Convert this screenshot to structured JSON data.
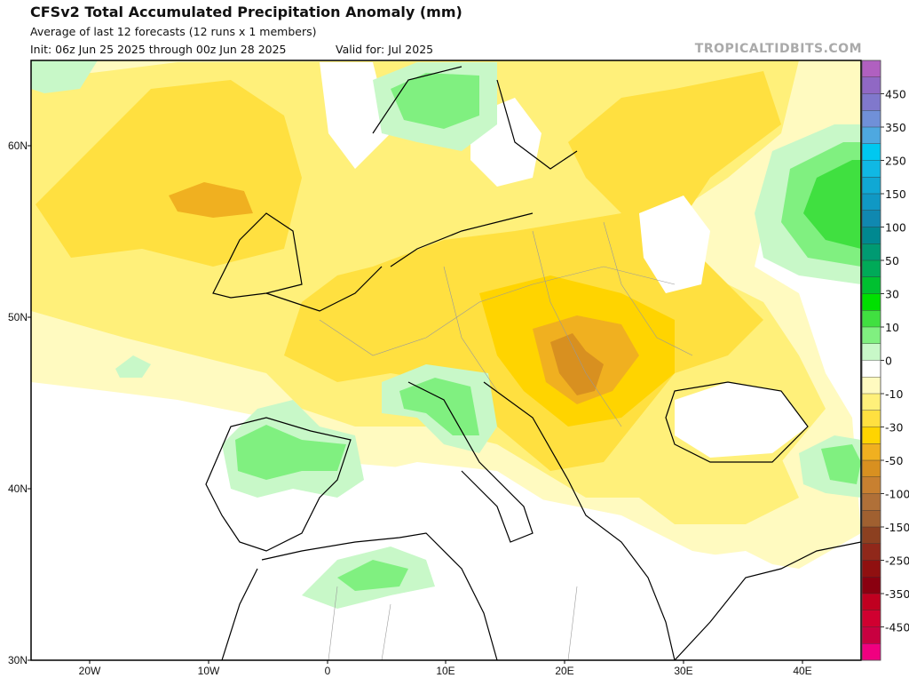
{
  "header": {
    "title": "CFSv2 Total Accumulated Precipitation Anomaly (mm)",
    "subtitle": "Average of last 12 forecasts (12 runs x 1 members)",
    "init": "Init: 06z Jun 25 2025 through 00z Jun 28 2025",
    "valid": "Valid for: Jul 2025",
    "watermark": "TROPICALTIDBITS.COM"
  },
  "axes": {
    "lat_labels": [
      "60N",
      "50N",
      "40N",
      "30N"
    ],
    "lon_labels": [
      "20W",
      "10W",
      "0",
      "10E",
      "20E",
      "30E",
      "40E"
    ]
  },
  "colorbar": {
    "labels": [
      "450",
      "350",
      "250",
      "150",
      "100",
      "50",
      "30",
      "10",
      "0",
      "-10",
      "-30",
      "-50",
      "-100",
      "-150",
      "-250",
      "-350",
      "-450"
    ],
    "colors": [
      "#b060c0",
      "#9068c4",
      "#8078cc",
      "#7090d8",
      "#4ea8e0",
      "#00c8f0",
      "#10b8e4",
      "#10a8d4",
      "#1098c4",
      "#1088b0",
      "#008890",
      "#009a72",
      "#00aa58",
      "#00c030",
      "#00e000",
      "#40e040",
      "#80f080",
      "#c8f8c8",
      "#ffffff",
      "#fffac0",
      "#fff07a",
      "#ffe040",
      "#ffd400",
      "#f0b020",
      "#d89020",
      "#c88030",
      "#b07038",
      "#a06030",
      "#8c4020",
      "#90281a",
      "#901010",
      "#8a0010",
      "#c00020",
      "#d00030",
      "#c80040",
      "#f00080"
    ]
  }
}
